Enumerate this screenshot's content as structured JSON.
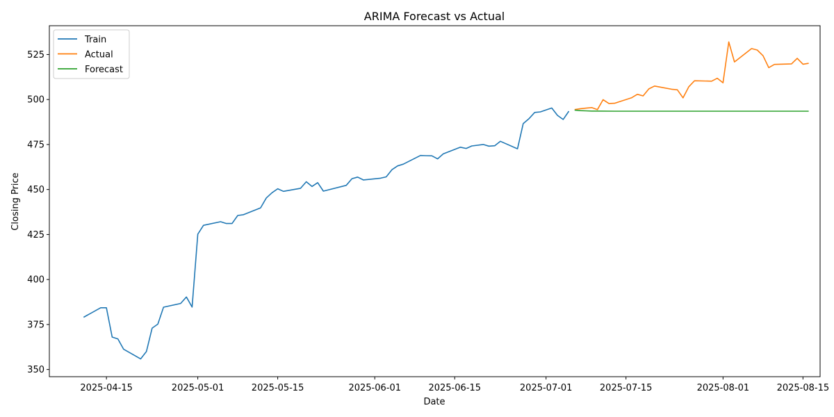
{
  "chart_data": {
    "type": "line",
    "title": "ARIMA Forecast vs Actual",
    "xlabel": "Date",
    "ylabel": "Closing Price",
    "xlim": [
      "2025-04-05",
      "2025-08-18"
    ],
    "ylim": [
      346,
      541
    ],
    "x_ticks": [
      "2025-04-15",
      "2025-05-01",
      "2025-05-15",
      "2025-06-01",
      "2025-06-15",
      "2025-07-01",
      "2025-07-15",
      "2025-08-01",
      "2025-08-15"
    ],
    "y_ticks": [
      350,
      375,
      400,
      425,
      450,
      475,
      500,
      525
    ],
    "grid": false,
    "legend": "top-left",
    "series": [
      {
        "name": "Train",
        "color": "#1f77b4",
        "points": [
          [
            "2025-04-11",
            379
          ],
          [
            "2025-04-14",
            384.3
          ],
          [
            "2025-04-15",
            384.3
          ],
          [
            "2025-04-16",
            368
          ],
          [
            "2025-04-17",
            367
          ],
          [
            "2025-04-18",
            361.3
          ],
          [
            "2025-04-21",
            355.9
          ],
          [
            "2025-04-22",
            360
          ],
          [
            "2025-04-23",
            373
          ],
          [
            "2025-04-24",
            375.2
          ],
          [
            "2025-04-25",
            384.6
          ],
          [
            "2025-04-28",
            386.7
          ],
          [
            "2025-04-29",
            390.3
          ],
          [
            "2025-04-30",
            384.7
          ],
          [
            "2025-05-01",
            425.2
          ],
          [
            "2025-05-02",
            430.1
          ],
          [
            "2025-05-05",
            432.1
          ],
          [
            "2025-05-06",
            431.1
          ],
          [
            "2025-05-07",
            431.1
          ],
          [
            "2025-05-08",
            435.6
          ],
          [
            "2025-05-09",
            436
          ],
          [
            "2025-05-12",
            439.8
          ],
          [
            "2025-05-13",
            445.3
          ],
          [
            "2025-05-14",
            448.2
          ],
          [
            "2025-05-15",
            450.4
          ],
          [
            "2025-05-16",
            449
          ],
          [
            "2025-05-19",
            450.7
          ],
          [
            "2025-05-20",
            454.3
          ],
          [
            "2025-05-21",
            451.7
          ],
          [
            "2025-05-22",
            453.8
          ],
          [
            "2025-05-23",
            449.1
          ],
          [
            "2025-05-27",
            452.3
          ],
          [
            "2025-05-28",
            456
          ],
          [
            "2025-05-29",
            456.9
          ],
          [
            "2025-05-30",
            455.3
          ],
          [
            "2025-06-02",
            456.3
          ],
          [
            "2025-06-03",
            457
          ],
          [
            "2025-06-04",
            461
          ],
          [
            "2025-06-05",
            463.1
          ],
          [
            "2025-06-06",
            464.1
          ],
          [
            "2025-06-09",
            468.9
          ],
          [
            "2025-06-10",
            468.8
          ],
          [
            "2025-06-11",
            468.7
          ],
          [
            "2025-06-12",
            467
          ],
          [
            "2025-06-13",
            469.8
          ],
          [
            "2025-06-16",
            473.5
          ],
          [
            "2025-06-17",
            472.8
          ],
          [
            "2025-06-18",
            474.2
          ],
          [
            "2025-06-20",
            475
          ],
          [
            "2025-06-21",
            474.1
          ],
          [
            "2025-06-22",
            474.3
          ],
          [
            "2025-06-23",
            476.8
          ],
          [
            "2025-06-26",
            472.6
          ],
          [
            "2025-06-27",
            486.6
          ],
          [
            "2025-06-28",
            489.3
          ],
          [
            "2025-06-29",
            492.8
          ],
          [
            "2025-06-30",
            493.1
          ],
          [
            "2025-07-02",
            495.3
          ],
          [
            "2025-07-03",
            491.2
          ],
          [
            "2025-07-04",
            488.9
          ],
          [
            "2025-07-05",
            493.5
          ]
        ]
      },
      {
        "name": "Actual",
        "color": "#ff7f0e",
        "points": [
          [
            "2025-07-06",
            494.4
          ],
          [
            "2025-07-07",
            494.9
          ],
          [
            "2025-07-08",
            495.2
          ],
          [
            "2025-07-09",
            495.5
          ],
          [
            "2025-07-10",
            494.4
          ],
          [
            "2025-07-11",
            499.9
          ],
          [
            "2025-07-12",
            497.8
          ],
          [
            "2025-07-13",
            497.9
          ],
          [
            "2025-07-16",
            501
          ],
          [
            "2025-07-17",
            502.9
          ],
          [
            "2025-07-18",
            502
          ],
          [
            "2025-07-19",
            505.9
          ],
          [
            "2025-07-20",
            507.5
          ],
          [
            "2025-07-23",
            505.7
          ],
          [
            "2025-07-24",
            505.4
          ],
          [
            "2025-07-25",
            500.9
          ],
          [
            "2025-07-26",
            507.1
          ],
          [
            "2025-07-27",
            510.4
          ],
          [
            "2025-07-30",
            510.2
          ],
          [
            "2025-07-31",
            511.8
          ],
          [
            "2025-08-01",
            509.3
          ],
          [
            "2025-08-02",
            532
          ],
          [
            "2025-08-03",
            520.9
          ],
          [
            "2025-08-06",
            528.3
          ],
          [
            "2025-08-07",
            527.5
          ],
          [
            "2025-08-08",
            524.3
          ],
          [
            "2025-08-09",
            517.7
          ],
          [
            "2025-08-10",
            519.5
          ],
          [
            "2025-08-13",
            519.8
          ],
          [
            "2025-08-14",
            522.9
          ],
          [
            "2025-08-15",
            519.6
          ],
          [
            "2025-08-16",
            520.1
          ]
        ]
      },
      {
        "name": "Forecast",
        "color": "#2ca02c",
        "points": [
          [
            "2025-07-06",
            494.1
          ],
          [
            "2025-07-07",
            493.8
          ],
          [
            "2025-07-08",
            493.7
          ],
          [
            "2025-07-09",
            493.6
          ],
          [
            "2025-07-10",
            493.6
          ],
          [
            "2025-07-13",
            493.5
          ],
          [
            "2025-08-16",
            493.5
          ]
        ]
      }
    ]
  }
}
